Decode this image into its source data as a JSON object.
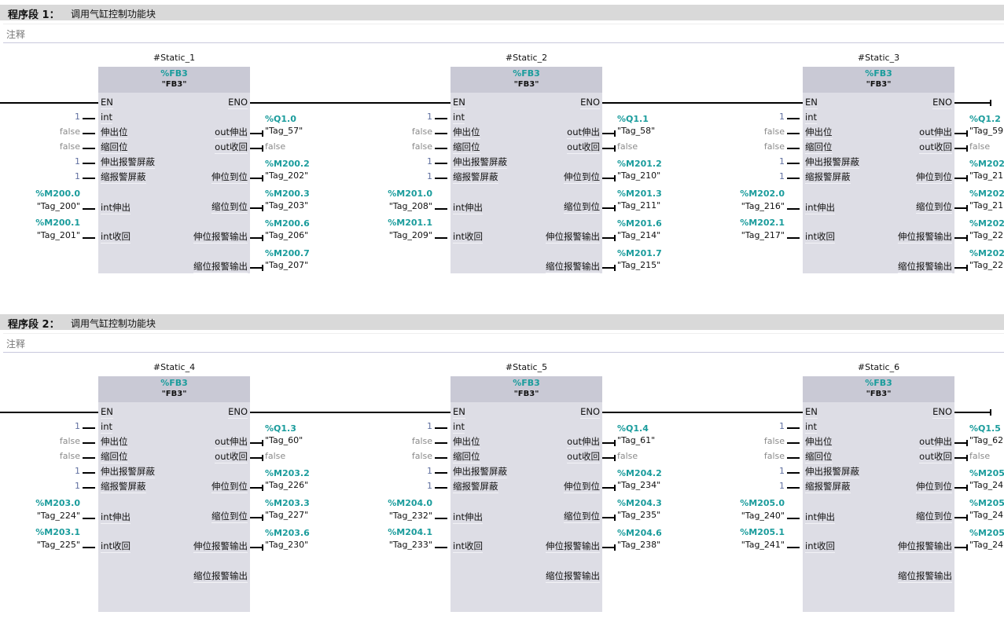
{
  "pins": {
    "en": "EN",
    "eno": "ENO",
    "inputs": [
      "int",
      "伸出位",
      "缩回位",
      "伸出报警屏蔽",
      "缩报警屏蔽",
      "int伸出",
      "int收回"
    ],
    "outputs": [
      "out伸出",
      "out收回",
      "伸位到位",
      "缩位到位",
      "伸位报警输出",
      "缩位报警输出"
    ]
  },
  "networks": [
    {
      "label": "程序段 1：",
      "title": "调用气缸控制功能块",
      "comment": "注释",
      "blocks": [
        {
          "instance": "#Static_1",
          "fb_address": "%FB3",
          "fb_name": "\"FB3\"",
          "inputs": [
            "1",
            "false",
            "false",
            "1",
            "1",
            {
              "addr": "%M200.0",
              "tag": "\"Tag_200\""
            },
            {
              "addr": "%M200.1",
              "tag": "\"Tag_201\""
            }
          ],
          "outputs": [
            {
              "addr": "%Q1.0",
              "tag": "\"Tag_57\""
            },
            "false",
            {
              "addr": "%M200.2",
              "tag": "\"Tag_202\""
            },
            {
              "addr": "%M200.3",
              "tag": "\"Tag_203\""
            },
            {
              "addr": "%M200.6",
              "tag": "\"Tag_206\""
            },
            {
              "addr": "%M200.7",
              "tag": "\"Tag_207\""
            }
          ]
        },
        {
          "instance": "#Static_2",
          "fb_address": "%FB3",
          "fb_name": "\"FB3\"",
          "inputs": [
            "1",
            "false",
            "false",
            "1",
            "1",
            {
              "addr": "%M201.0",
              "tag": "\"Tag_208\""
            },
            {
              "addr": "%M201.1",
              "tag": "\"Tag_209\""
            }
          ],
          "outputs": [
            {
              "addr": "%Q1.1",
              "tag": "\"Tag_58\""
            },
            "false",
            {
              "addr": "%M201.2",
              "tag": "\"Tag_210\""
            },
            {
              "addr": "%M201.3",
              "tag": "\"Tag_211\""
            },
            {
              "addr": "%M201.6",
              "tag": "\"Tag_214\""
            },
            {
              "addr": "%M201.7",
              "tag": "\"Tag_215\""
            }
          ]
        },
        {
          "instance": "#Static_3",
          "fb_address": "%FB3",
          "fb_name": "\"FB3\"",
          "inputs": [
            "1",
            "false",
            "false",
            "1",
            "1",
            {
              "addr": "%M202.0",
              "tag": "\"Tag_216\""
            },
            {
              "addr": "%M202.1",
              "tag": "\"Tag_217\""
            }
          ],
          "outputs": [
            {
              "addr": "%Q1.2",
              "tag": "\"Tag_59"
            },
            "false",
            {
              "addr": "%M202.",
              "tag": "\"Tag_21"
            },
            {
              "addr": "%M202.",
              "tag": "\"Tag_21"
            },
            {
              "addr": "%M202.",
              "tag": "\"Tag_22"
            },
            {
              "addr": "%M202.",
              "tag": "\"Tag_22"
            }
          ]
        }
      ]
    },
    {
      "label": "程序段 2：",
      "title": "调用气缸控制功能块",
      "comment": "注释",
      "blocks": [
        {
          "instance": "#Static_4",
          "fb_address": "%FB3",
          "fb_name": "\"FB3\"",
          "inputs": [
            "1",
            "false",
            "false",
            "1",
            "1",
            {
              "addr": "%M203.0",
              "tag": "\"Tag_224\""
            },
            {
              "addr": "%M203.1",
              "tag": "\"Tag_225\""
            }
          ],
          "outputs": [
            {
              "addr": "%Q1.3",
              "tag": "\"Tag_60\""
            },
            "false",
            {
              "addr": "%M203.2",
              "tag": "\"Tag_226\""
            },
            {
              "addr": "%M203.3",
              "tag": "\"Tag_227\""
            },
            {
              "addr": "%M203.6",
              "tag": "\"Tag_230\""
            }
          ]
        },
        {
          "instance": "#Static_5",
          "fb_address": "%FB3",
          "fb_name": "\"FB3\"",
          "inputs": [
            "1",
            "false",
            "false",
            "1",
            "1",
            {
              "addr": "%M204.0",
              "tag": "\"Tag_232\""
            },
            {
              "addr": "%M204.1",
              "tag": "\"Tag_233\""
            }
          ],
          "outputs": [
            {
              "addr": "%Q1.4",
              "tag": "\"Tag_61\""
            },
            "false",
            {
              "addr": "%M204.2",
              "tag": "\"Tag_234\""
            },
            {
              "addr": "%M204.3",
              "tag": "\"Tag_235\""
            },
            {
              "addr": "%M204.6",
              "tag": "\"Tag_238\""
            }
          ]
        },
        {
          "instance": "#Static_6",
          "fb_address": "%FB3",
          "fb_name": "\"FB3\"",
          "inputs": [
            "1",
            "false",
            "false",
            "1",
            "1",
            {
              "addr": "%M205.0",
              "tag": "\"Tag_240\""
            },
            {
              "addr": "%M205.1",
              "tag": "\"Tag_241\""
            }
          ],
          "outputs": [
            {
              "addr": "%Q1.5",
              "tag": "\"Tag_62"
            },
            "false",
            {
              "addr": "%M205.",
              "tag": "\"Tag_24"
            },
            {
              "addr": "%M205.",
              "tag": "\"Tag_24"
            },
            {
              "addr": "%M205.",
              "tag": "\"Tag_24"
            }
          ]
        }
      ]
    }
  ]
}
